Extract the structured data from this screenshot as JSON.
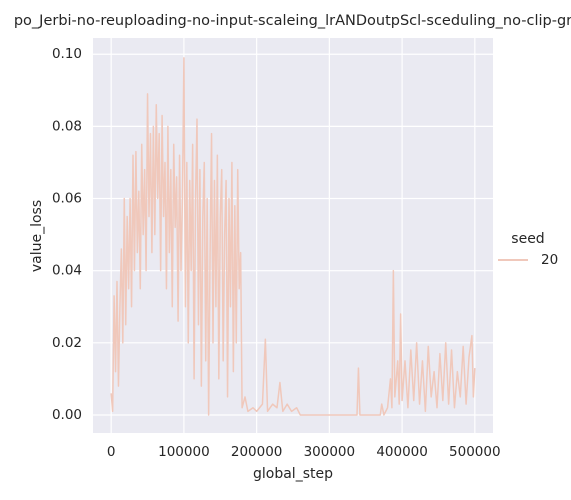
{
  "chart_data": {
    "type": "line",
    "title": "po_Jerbi-no-reuploading-no-input-scaleing_lrANDoutpScl-sceduling_no-clip-gr",
    "xlabel": "global_step",
    "ylabel": "value_loss",
    "legend_title": "seed",
    "legend": "right",
    "grid": true,
    "xlim": [
      -25000,
      525000
    ],
    "xticks": [
      0,
      100000,
      200000,
      300000,
      400000,
      500000
    ],
    "ylim": [
      -0.005,
      0.1045
    ],
    "yticks": [
      {
        "value": 0,
        "label": "0.00"
      },
      {
        "value": 0.02,
        "label": "0.02"
      },
      {
        "value": 0.04,
        "label": "0.04"
      },
      {
        "value": 0.06,
        "label": "0.06"
      },
      {
        "value": 0.08,
        "label": "0.08"
      },
      {
        "value": 0.1,
        "label": "0.10"
      }
    ],
    "x": [
      0,
      2000,
      4000,
      6000,
      8000,
      10000,
      12000,
      14000,
      16000,
      18000,
      20000,
      22000,
      24000,
      26000,
      28000,
      30000,
      32000,
      34000,
      36000,
      38000,
      40000,
      42000,
      44000,
      46000,
      48000,
      50000,
      52000,
      54000,
      56000,
      58000,
      60000,
      62000,
      64000,
      66000,
      68000,
      70000,
      72000,
      74000,
      76000,
      78000,
      80000,
      82000,
      84000,
      86000,
      88000,
      90000,
      92000,
      94000,
      96000,
      98000,
      100000,
      102000,
      104000,
      106000,
      108000,
      110000,
      112000,
      114000,
      116000,
      118000,
      120000,
      122000,
      124000,
      126000,
      128000,
      130000,
      132000,
      134000,
      136000,
      138000,
      140000,
      142000,
      144000,
      146000,
      148000,
      150000,
      152000,
      154000,
      156000,
      158000,
      160000,
      162000,
      164000,
      166000,
      168000,
      170000,
      172000,
      174000,
      176000,
      178000,
      180000,
      184000,
      188000,
      195000,
      200000,
      208000,
      212000,
      215000,
      222000,
      228000,
      232000,
      236000,
      242000,
      248000,
      255000,
      260000,
      300000,
      338000,
      340000,
      342000,
      370000,
      372000,
      375000,
      380000,
      384000,
      386000,
      388000,
      390000,
      394000,
      396000,
      398000,
      400000,
      404000,
      408000,
      412000,
      416000,
      420000,
      424000,
      428000,
      432000,
      436000,
      440000,
      444000,
      448000,
      452000,
      456000,
      460000,
      464000,
      468000,
      472000,
      476000,
      480000,
      484000,
      488000,
      492000,
      496000,
      498000,
      500000
    ],
    "series": [
      {
        "name": "20",
        "color": "#f0c8bb",
        "values": [
          0.006,
          0.001,
          0.033,
          0.012,
          0.037,
          0.008,
          0.03,
          0.046,
          0.02,
          0.06,
          0.025,
          0.055,
          0.035,
          0.06,
          0.03,
          0.072,
          0.04,
          0.073,
          0.045,
          0.062,
          0.035,
          0.075,
          0.05,
          0.068,
          0.04,
          0.089,
          0.055,
          0.078,
          0.045,
          0.08,
          0.05,
          0.086,
          0.06,
          0.078,
          0.04,
          0.083,
          0.055,
          0.07,
          0.035,
          0.08,
          0.045,
          0.068,
          0.03,
          0.075,
          0.052,
          0.066,
          0.026,
          0.072,
          0.04,
          0.06,
          0.099,
          0.03,
          0.07,
          0.02,
          0.065,
          0.04,
          0.075,
          0.01,
          0.06,
          0.082,
          0.025,
          0.068,
          0.008,
          0.055,
          0.07,
          0.015,
          0.06,
          0.0,
          0.045,
          0.078,
          0.02,
          0.065,
          0.03,
          0.072,
          0.01,
          0.055,
          0.068,
          0.015,
          0.05,
          0.065,
          0.005,
          0.06,
          0.03,
          0.07,
          0.012,
          0.058,
          0.02,
          0.068,
          0.035,
          0.045,
          0.002,
          0.005,
          0.001,
          0.002,
          0.001,
          0.003,
          0.021,
          0.001,
          0.003,
          0.002,
          0.009,
          0.001,
          0.003,
          0.001,
          0.002,
          0.0,
          0.0,
          0.0,
          0.013,
          0.0,
          0.0,
          0.003,
          0.0,
          0.002,
          0.01,
          0.002,
          0.04,
          0.005,
          0.015,
          0.003,
          0.028,
          0.004,
          0.015,
          0.002,
          0.018,
          0.004,
          0.02,
          0.003,
          0.015,
          0.001,
          0.019,
          0.005,
          0.012,
          0.002,
          0.017,
          0.004,
          0.02,
          0.003,
          0.018,
          0.002,
          0.012,
          0.005,
          0.019,
          0.003,
          0.016,
          0.022,
          0.005,
          0.013
        ]
      }
    ]
  }
}
